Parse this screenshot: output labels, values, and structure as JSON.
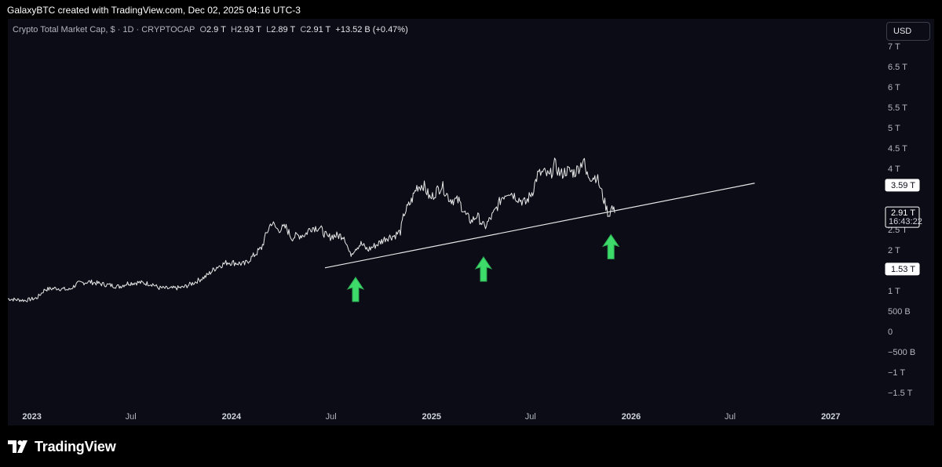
{
  "header": {
    "caption": "GalaxyBTC created with TradingView.com, Dec 02, 2025 04:16 UTC-3"
  },
  "legend": {
    "symbol": "Crypto Total Market Cap, $ · 1D · CRYPTOCAP",
    "open_label": "O",
    "open": "2.9 T",
    "high_label": "H",
    "high": "2.93 T",
    "low_label": "L",
    "low": "2.89 T",
    "close_label": "C",
    "close": "2.91 T",
    "change": "+13.52 B (+0.47%)"
  },
  "toolbar": {
    "currency_label": "USD"
  },
  "footer": {
    "brand_text": "TradingView"
  },
  "colors": {
    "background": "#0b0c16",
    "price_line": "#e8e8e8",
    "trendline": "#e8e8e8",
    "arrows": "#3ddc6a",
    "axis_text": "#b2b5be"
  },
  "chart_data": {
    "type": "line",
    "title": "Crypto Total Market Cap",
    "xlabel": "",
    "ylabel": "",
    "y_unit": "T",
    "ylim": [
      -1.6,
      7.1
    ],
    "xlim": [
      "2022-11-18",
      "2027-03-25"
    ],
    "grid": false,
    "y_ticks": [
      {
        "value": 7,
        "label": "7 T"
      },
      {
        "value": 6.5,
        "label": "6.5 T"
      },
      {
        "value": 6,
        "label": "6 T"
      },
      {
        "value": 5.5,
        "label": "5.5 T"
      },
      {
        "value": 5,
        "label": "5 T"
      },
      {
        "value": 4.5,
        "label": "4.5 T"
      },
      {
        "value": 4,
        "label": "4 T"
      },
      {
        "value": 2.5,
        "label": "2.5 T"
      },
      {
        "value": 2,
        "label": "2 T"
      },
      {
        "value": 1,
        "label": "1 T"
      },
      {
        "value": 0.5,
        "label": "500 B"
      },
      {
        "value": 0,
        "label": "0"
      },
      {
        "value": -0.5,
        "label": "−500 B"
      },
      {
        "value": -1,
        "label": "−1 T"
      },
      {
        "value": -1.5,
        "label": "−1.5 T"
      }
    ],
    "price_badges": [
      {
        "value": 3.59,
        "label": "3.59 T"
      },
      {
        "value": 2.91,
        "label": "2.91 T",
        "sublabel": "16:43:22",
        "current": true
      },
      {
        "value": 1.53,
        "label": "1.53 T"
      }
    ],
    "x_ticks": [
      {
        "date": "2023-01-01",
        "label": "2023",
        "year": true
      },
      {
        "date": "2023-07-01",
        "label": "Jul"
      },
      {
        "date": "2024-01-01",
        "label": "2024",
        "year": true
      },
      {
        "date": "2024-07-01",
        "label": "Jul"
      },
      {
        "date": "2025-01-01",
        "label": "2025",
        "year": true
      },
      {
        "date": "2025-07-01",
        "label": "Jul"
      },
      {
        "date": "2026-01-01",
        "label": "2026",
        "year": true
      },
      {
        "date": "2026-07-01",
        "label": "Jul"
      },
      {
        "date": "2027-01-01",
        "label": "2027",
        "year": true
      }
    ],
    "series": [
      {
        "x": [
          "2022-11-18",
          "2022-12-01",
          "2022-12-20",
          "2023-01-10",
          "2023-01-25",
          "2023-02-15",
          "2023-03-10",
          "2023-03-25",
          "2023-04-15",
          "2023-05-10",
          "2023-06-10",
          "2023-06-25",
          "2023-07-15",
          "2023-08-10",
          "2023-08-20",
          "2023-09-10",
          "2023-10-05",
          "2023-10-25",
          "2023-11-15",
          "2023-12-05",
          "2023-12-25",
          "2024-01-10",
          "2024-01-25",
          "2024-02-10",
          "2024-02-25",
          "2024-03-05",
          "2024-03-14",
          "2024-03-25",
          "2024-04-10",
          "2024-04-20",
          "2024-05-01",
          "2024-05-15",
          "2024-05-25",
          "2024-06-10",
          "2024-06-25",
          "2024-07-05",
          "2024-07-25",
          "2024-08-05",
          "2024-08-15",
          "2024-08-25",
          "2024-09-06",
          "2024-09-25",
          "2024-10-10",
          "2024-10-25",
          "2024-11-05",
          "2024-11-12",
          "2024-11-25",
          "2024-12-05",
          "2024-12-17",
          "2024-12-30",
          "2025-01-10",
          "2025-01-20",
          "2025-02-03",
          "2025-02-20",
          "2025-03-05",
          "2025-03-15",
          "2025-03-25",
          "2025-04-08",
          "2025-04-25",
          "2025-05-10",
          "2025-05-22",
          "2025-06-10",
          "2025-06-22",
          "2025-07-05",
          "2025-07-14",
          "2025-07-25",
          "2025-08-05",
          "2025-08-14",
          "2025-08-25",
          "2025-09-05",
          "2025-09-20",
          "2025-10-01",
          "2025-10-06",
          "2025-10-11",
          "2025-10-20",
          "2025-10-30",
          "2025-11-05",
          "2025-11-14",
          "2025-11-21",
          "2025-11-27",
          "2025-12-02"
        ],
        "y": [
          0.8,
          0.78,
          0.76,
          0.82,
          1.03,
          1.06,
          1.02,
          1.17,
          1.22,
          1.16,
          1.1,
          1.18,
          1.2,
          1.16,
          1.07,
          1.05,
          1.08,
          1.2,
          1.35,
          1.58,
          1.7,
          1.68,
          1.65,
          1.85,
          2.05,
          2.4,
          2.68,
          2.5,
          2.55,
          2.3,
          2.35,
          2.38,
          2.55,
          2.55,
          2.3,
          2.35,
          2.35,
          1.88,
          2.05,
          2.15,
          2.0,
          2.15,
          2.3,
          2.35,
          2.45,
          2.9,
          3.2,
          3.55,
          3.6,
          3.25,
          3.45,
          3.58,
          3.25,
          3.2,
          2.85,
          2.7,
          2.85,
          2.55,
          2.9,
          3.3,
          3.45,
          3.25,
          3.15,
          3.45,
          3.85,
          3.9,
          3.8,
          4.1,
          3.85,
          3.95,
          3.9,
          4.1,
          4.25,
          3.85,
          3.8,
          3.8,
          3.55,
          3.15,
          2.85,
          3.05,
          2.91
        ]
      }
    ],
    "trendline": {
      "x": [
        "2024-06-20",
        "2026-08-15"
      ],
      "y": [
        1.56,
        3.64
      ]
    },
    "annotations": [
      {
        "type": "arrow-up",
        "x": "2024-08-15",
        "y": 1.0
      },
      {
        "type": "arrow-up",
        "x": "2025-04-06",
        "y": 1.5
      },
      {
        "type": "arrow-up",
        "x": "2025-11-25",
        "y": 2.05
      }
    ]
  }
}
